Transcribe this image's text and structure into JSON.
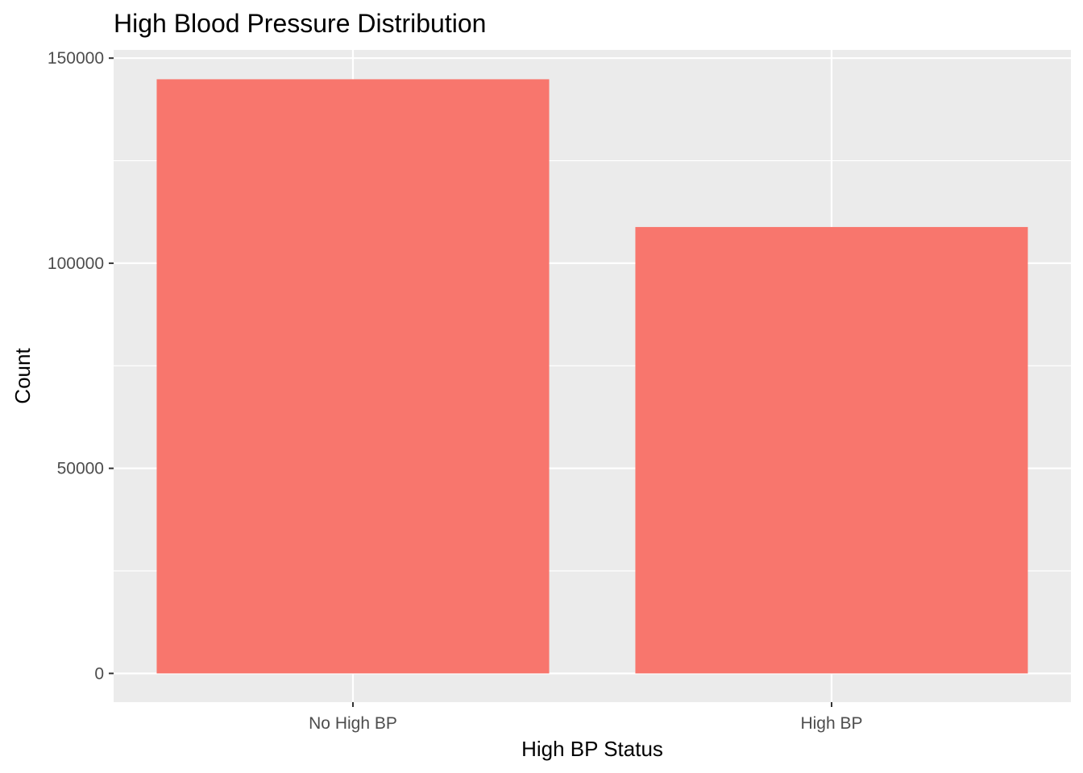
{
  "chart_data": {
    "type": "bar",
    "title": "High Blood Pressure Distribution",
    "xlabel": "High BP Status",
    "ylabel": "Count",
    "categories": [
      "No High BP",
      "High BP"
    ],
    "values": [
      144851,
      108829
    ],
    "ylim": [
      -7000,
      152000
    ],
    "yticks": [
      0,
      50000,
      100000,
      150000
    ],
    "ytick_labels": [
      "0",
      "50000",
      "100000",
      "150000"
    ],
    "grid": true,
    "legend": "none",
    "colors": {
      "bar": "#F8766D",
      "panel": "#EBEBEB",
      "grid": "#FFFFFF",
      "tick": "#333333",
      "tick_label": "#4D4D4D"
    }
  }
}
